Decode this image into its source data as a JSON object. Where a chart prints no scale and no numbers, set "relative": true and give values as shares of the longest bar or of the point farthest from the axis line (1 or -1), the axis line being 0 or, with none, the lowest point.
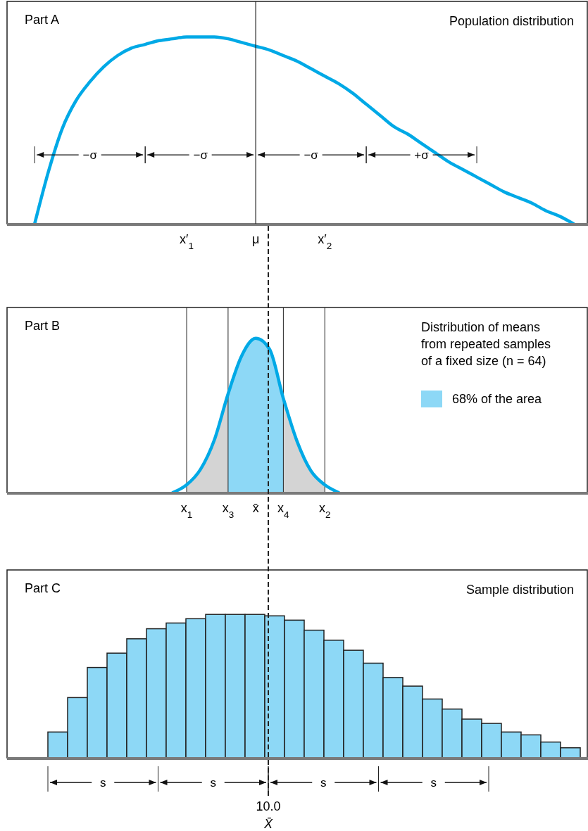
{
  "chart_data": [
    {
      "type": "line",
      "title": "Part A",
      "subtitle": "Population distribution",
      "relative": true,
      "categories": [
        null,
        null,
        null,
        null,
        null,
        null,
        null,
        null,
        null,
        null,
        null,
        null,
        null,
        "x′$_{1}$",
        null,
        null,
        null,
        null,
        "μ",
        null,
        null,
        null,
        null,
        "x′$_{2}$",
        null,
        null,
        null,
        null,
        null,
        null,
        null,
        null,
        null,
        null,
        null,
        null,
        null,
        null,
        null,
        null,
        null,
        null,
        null
      ],
      "series": [
        {
          "color": "#00a9e6",
          "values": [
            null,
            null,
            0,
            0.28,
            0.51,
            0.66,
            0.76,
            0.84,
            0.9,
            0.94,
            0.96,
            0.98,
            0.99,
            1.0,
            1.0,
            1.0,
            0.99,
            0.97,
            0.95,
            0.93,
            0.9,
            0.87,
            0.83,
            0.79,
            0.75,
            0.7,
            0.64,
            0.58,
            0.52,
            0.48,
            0.43,
            0.38,
            0.33,
            0.29,
            0.25,
            0.21,
            0.17,
            0.14,
            0.11,
            0.07,
            0.04,
            0,
            null
          ]
        }
      ],
      "ref_lines": [
        {
          "axis": "x",
          "value": "μ"
        }
      ],
      "annotations": [
        "−σ",
        "−σ",
        "−σ",
        "+σ"
      ]
    },
    {
      "type": "line",
      "title": "Part B",
      "subtitle": "Distribution of means\nfrom repeated samples\nof a fixed size (n = 64)",
      "relative": true,
      "legend": "right",
      "categories": [
        null,
        null,
        null,
        null,
        null,
        null,
        null,
        null,
        null,
        null,
        null,
        null,
        null,
        "x$_{1}$",
        null,
        null,
        "x$_{3}$",
        null,
        "x̄",
        null,
        "x$_{4}$",
        null,
        null,
        "x$_{2}$",
        null,
        null,
        null,
        null,
        null,
        null,
        null,
        null,
        null,
        null,
        null,
        null,
        null,
        null,
        null,
        null,
        null,
        null,
        null
      ],
      "series": [
        {
          "type": "area",
          "color": "#d4d4d4",
          "values": [
            null,
            null,
            null,
            null,
            null,
            null,
            null,
            null,
            null,
            null,
            null,
            null,
            null,
            0.05,
            0.15,
            0.34,
            0.64,
            null,
            null,
            null,
            0.61,
            0.33,
            0.14,
            0.05,
            null,
            null,
            null,
            null,
            null,
            null,
            null,
            null,
            null,
            null,
            null,
            null,
            null,
            null,
            null,
            null,
            null,
            null,
            null
          ]
        },
        {
          "type": "area",
          "name": "68% of the area",
          "color": "#8dd8f6",
          "values": [
            null,
            null,
            null,
            null,
            null,
            null,
            null,
            null,
            null,
            null,
            null,
            null,
            null,
            null,
            null,
            null,
            0.64,
            0.89,
            1.0,
            0.93,
            0.61,
            null,
            null,
            null,
            null,
            null,
            null,
            null,
            null,
            null,
            null,
            null,
            null,
            null,
            null,
            null,
            null,
            null,
            null,
            null,
            null,
            null,
            null
          ]
        },
        {
          "color": "#00a9e6",
          "values": [
            null,
            null,
            null,
            null,
            null,
            null,
            null,
            null,
            null,
            null,
            null,
            null,
            0,
            0.05,
            0.15,
            0.34,
            0.64,
            0.89,
            1.0,
            0.93,
            0.61,
            0.33,
            0.14,
            0.05,
            0,
            null,
            null,
            null,
            null,
            null,
            null,
            null,
            null,
            null,
            null,
            null,
            null,
            null,
            null,
            null,
            null,
            null,
            null
          ]
        }
      ],
      "ref_lines": [
        {
          "axis": "x",
          "value": "x$_{1}$"
        },
        {
          "axis": "x",
          "value": "x$_{3}$"
        },
        {
          "axis": "x",
          "value": "x$_{4}$"
        },
        {
          "axis": "x",
          "value": "x$_{2}$"
        }
      ]
    },
    {
      "type": "bar",
      "title": "Part C",
      "subtitle": "Sample distribution",
      "relative": true,
      "xlabel": "X̄",
      "color": "#8dd8f6",
      "categories": [
        null,
        null,
        null,
        null,
        null,
        null,
        null,
        null,
        null,
        null,
        null,
        null,
        null,
        null,
        null,
        null,
        null,
        null,
        null,
        null,
        null,
        null,
        null,
        null,
        null,
        null,
        null
      ],
      "values": [
        0.18,
        0.42,
        0.63,
        0.73,
        0.83,
        0.9,
        0.94,
        0.97,
        1.0,
        1.0,
        1.0,
        0.99,
        0.96,
        0.89,
        0.82,
        0.75,
        0.66,
        0.56,
        0.5,
        0.41,
        0.34,
        0.27,
        0.24,
        0.18,
        0.16,
        0.11,
        0.07
      ],
      "annotations": [
        "s",
        "s",
        "s",
        "s",
        "10.0"
      ]
    }
  ]
}
